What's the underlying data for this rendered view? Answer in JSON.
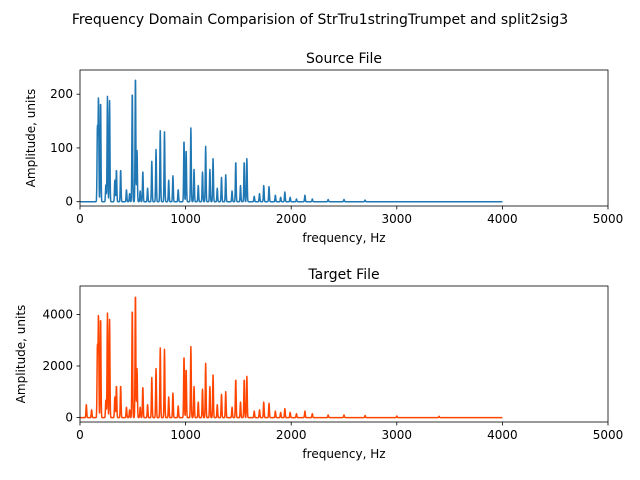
{
  "figure": {
    "suptitle": "Frequency Domain Comparision of StrTru1stringTrumpet and split2sig3"
  },
  "chart_data": [
    {
      "type": "line",
      "title": "Source File",
      "xlabel": "frequency, Hz",
      "ylabel": "Amplitude, units",
      "xlim": [
        0,
        5000
      ],
      "ylim": [
        -8,
        245
      ],
      "xticks": [
        0,
        1000,
        2000,
        3000,
        4000,
        5000
      ],
      "xtick_labels": [
        "0",
        "1000",
        "2000",
        "3000",
        "4000",
        "5000"
      ],
      "yticks": [
        0,
        100,
        200
      ],
      "ytick_labels": [
        "0",
        "100",
        "200"
      ],
      "grid": false,
      "series": [
        {
          "color": "#1f77b4",
          "x_range": [
            0,
            4000
          ],
          "peaks": [
            {
              "x": 165,
              "y": 140
            },
            {
              "x": 175,
              "y": 195
            },
            {
              "x": 195,
              "y": 188
            },
            {
              "x": 245,
              "y": 32
            },
            {
              "x": 260,
              "y": 196
            },
            {
              "x": 280,
              "y": 188
            },
            {
              "x": 330,
              "y": 40
            },
            {
              "x": 345,
              "y": 60
            },
            {
              "x": 385,
              "y": 60
            },
            {
              "x": 440,
              "y": 22
            },
            {
              "x": 470,
              "y": 15
            },
            {
              "x": 495,
              "y": 206
            },
            {
              "x": 525,
              "y": 235
            },
            {
              "x": 540,
              "y": 95
            },
            {
              "x": 570,
              "y": 20
            },
            {
              "x": 595,
              "y": 57
            },
            {
              "x": 640,
              "y": 25
            },
            {
              "x": 680,
              "y": 75
            },
            {
              "x": 720,
              "y": 97
            },
            {
              "x": 760,
              "y": 132
            },
            {
              "x": 800,
              "y": 130
            },
            {
              "x": 840,
              "y": 40
            },
            {
              "x": 880,
              "y": 48
            },
            {
              "x": 930,
              "y": 22
            },
            {
              "x": 985,
              "y": 115
            },
            {
              "x": 1005,
              "y": 97
            },
            {
              "x": 1050,
              "y": 137
            },
            {
              "x": 1080,
              "y": 60
            },
            {
              "x": 1120,
              "y": 30
            },
            {
              "x": 1160,
              "y": 55
            },
            {
              "x": 1190,
              "y": 103
            },
            {
              "x": 1230,
              "y": 60
            },
            {
              "x": 1260,
              "y": 80
            },
            {
              "x": 1300,
              "y": 25
            },
            {
              "x": 1340,
              "y": 45
            },
            {
              "x": 1380,
              "y": 50
            },
            {
              "x": 1440,
              "y": 20
            },
            {
              "x": 1475,
              "y": 75
            },
            {
              "x": 1520,
              "y": 30
            },
            {
              "x": 1555,
              "y": 75
            },
            {
              "x": 1580,
              "y": 80
            },
            {
              "x": 1650,
              "y": 10
            },
            {
              "x": 1700,
              "y": 15
            },
            {
              "x": 1740,
              "y": 30
            },
            {
              "x": 1790,
              "y": 28
            },
            {
              "x": 1850,
              "y": 12
            },
            {
              "x": 1900,
              "y": 8
            },
            {
              "x": 1940,
              "y": 18
            },
            {
              "x": 1990,
              "y": 8
            },
            {
              "x": 2050,
              "y": 5
            },
            {
              "x": 2130,
              "y": 12
            },
            {
              "x": 2200,
              "y": 5
            },
            {
              "x": 2350,
              "y": 4
            },
            {
              "x": 2500,
              "y": 4
            },
            {
              "x": 2700,
              "y": 3
            }
          ]
        }
      ]
    },
    {
      "type": "line",
      "title": "Target File",
      "xlabel": "frequency, Hz",
      "ylabel": "Amplitude, units",
      "xlim": [
        0,
        5000
      ],
      "ylim": [
        -170,
        5100
      ],
      "xticks": [
        0,
        1000,
        2000,
        3000,
        4000,
        5000
      ],
      "xtick_labels": [
        "0",
        "1000",
        "2000",
        "3000",
        "4000",
        "5000"
      ],
      "yticks": [
        0,
        2000,
        4000
      ],
      "ytick_labels": [
        "0",
        "2000",
        "4000"
      ],
      "grid": false,
      "series": [
        {
          "color": "#ff4500",
          "x_range": [
            0,
            4000
          ],
          "peaks": [
            {
              "x": 60,
              "y": 500
            },
            {
              "x": 110,
              "y": 300
            },
            {
              "x": 165,
              "y": 2800
            },
            {
              "x": 175,
              "y": 4000
            },
            {
              "x": 195,
              "y": 3900
            },
            {
              "x": 245,
              "y": 700
            },
            {
              "x": 260,
              "y": 4050
            },
            {
              "x": 280,
              "y": 3800
            },
            {
              "x": 330,
              "y": 800
            },
            {
              "x": 345,
              "y": 1250
            },
            {
              "x": 385,
              "y": 1250
            },
            {
              "x": 440,
              "y": 400
            },
            {
              "x": 470,
              "y": 300
            },
            {
              "x": 495,
              "y": 4250
            },
            {
              "x": 525,
              "y": 4850
            },
            {
              "x": 540,
              "y": 1900
            },
            {
              "x": 570,
              "y": 400
            },
            {
              "x": 595,
              "y": 1200
            },
            {
              "x": 640,
              "y": 500
            },
            {
              "x": 680,
              "y": 1550
            },
            {
              "x": 720,
              "y": 1900
            },
            {
              "x": 760,
              "y": 2700
            },
            {
              "x": 800,
              "y": 2650
            },
            {
              "x": 840,
              "y": 800
            },
            {
              "x": 880,
              "y": 950
            },
            {
              "x": 930,
              "y": 450
            },
            {
              "x": 985,
              "y": 2400
            },
            {
              "x": 1005,
              "y": 1900
            },
            {
              "x": 1050,
              "y": 2750
            },
            {
              "x": 1080,
              "y": 1200
            },
            {
              "x": 1120,
              "y": 600
            },
            {
              "x": 1160,
              "y": 1100
            },
            {
              "x": 1190,
              "y": 2100
            },
            {
              "x": 1230,
              "y": 1200
            },
            {
              "x": 1260,
              "y": 1650
            },
            {
              "x": 1300,
              "y": 500
            },
            {
              "x": 1340,
              "y": 900
            },
            {
              "x": 1380,
              "y": 1000
            },
            {
              "x": 1440,
              "y": 400
            },
            {
              "x": 1475,
              "y": 1500
            },
            {
              "x": 1520,
              "y": 600
            },
            {
              "x": 1555,
              "y": 1500
            },
            {
              "x": 1580,
              "y": 1600
            },
            {
              "x": 1650,
              "y": 250
            },
            {
              "x": 1700,
              "y": 300
            },
            {
              "x": 1740,
              "y": 600
            },
            {
              "x": 1790,
              "y": 550
            },
            {
              "x": 1850,
              "y": 250
            },
            {
              "x": 1900,
              "y": 200
            },
            {
              "x": 1940,
              "y": 350
            },
            {
              "x": 1990,
              "y": 200
            },
            {
              "x": 2050,
              "y": 150
            },
            {
              "x": 2130,
              "y": 250
            },
            {
              "x": 2200,
              "y": 150
            },
            {
              "x": 2350,
              "y": 100
            },
            {
              "x": 2500,
              "y": 100
            },
            {
              "x": 2700,
              "y": 80
            },
            {
              "x": 3000,
              "y": 60
            },
            {
              "x": 3400,
              "y": 50
            }
          ]
        }
      ]
    }
  ]
}
